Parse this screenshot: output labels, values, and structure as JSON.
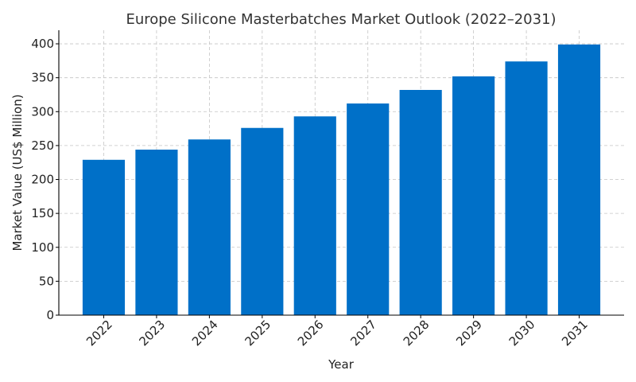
{
  "chart_data": {
    "type": "bar",
    "title": "Europe Silicone Masterbatches Market Outlook (2022–2031)",
    "xlabel": "Year",
    "ylabel": "Market Value (US$ Million)",
    "categories": [
      "2022",
      "2023",
      "2024",
      "2025",
      "2026",
      "2027",
      "2028",
      "2029",
      "2030",
      "2031"
    ],
    "values": [
      229,
      244,
      259,
      276,
      293,
      312,
      332,
      352,
      374,
      399
    ],
    "ylim": [
      0,
      420
    ],
    "yticks": [
      0,
      50,
      100,
      150,
      200,
      250,
      300,
      350,
      400
    ],
    "grid": true,
    "bar_color": "#0070c8",
    "grid_color": "#c4c4c4"
  }
}
